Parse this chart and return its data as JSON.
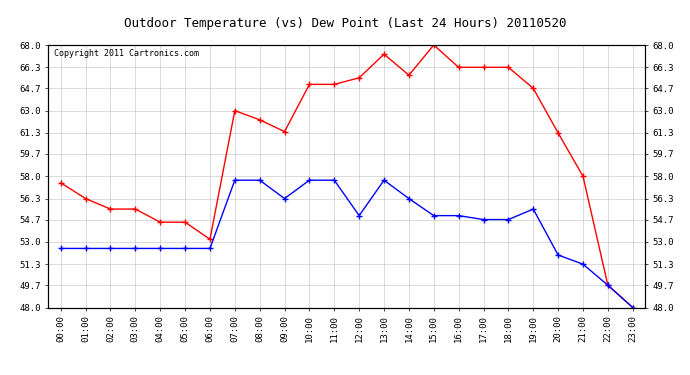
{
  "title": "Outdoor Temperature (vs) Dew Point (Last 24 Hours) 20110520",
  "copyright": "Copyright 2011 Cartronics.com",
  "x_labels": [
    "00:00",
    "01:00",
    "02:00",
    "03:00",
    "04:00",
    "05:00",
    "06:00",
    "07:00",
    "08:00",
    "09:00",
    "10:00",
    "11:00",
    "12:00",
    "13:00",
    "14:00",
    "15:00",
    "16:00",
    "17:00",
    "18:00",
    "19:00",
    "20:00",
    "21:00",
    "22:00",
    "23:00"
  ],
  "temp_red": [
    57.5,
    56.3,
    55.5,
    55.5,
    54.5,
    54.5,
    53.2,
    63.0,
    62.3,
    61.4,
    65.0,
    65.0,
    65.5,
    67.3,
    65.7,
    68.0,
    66.3,
    66.3,
    66.3,
    64.7,
    61.3,
    58.0,
    49.7,
    48.0
  ],
  "dew_blue": [
    52.5,
    52.5,
    52.5,
    52.5,
    52.5,
    52.5,
    52.5,
    57.7,
    57.7,
    56.3,
    57.7,
    57.7,
    55.0,
    57.7,
    56.3,
    55.0,
    55.0,
    54.7,
    54.7,
    55.5,
    52.0,
    51.3,
    49.7,
    48.0
  ],
  "ylim": [
    48.0,
    68.0
  ],
  "yticks": [
    48.0,
    49.7,
    51.3,
    53.0,
    54.7,
    56.3,
    58.0,
    59.7,
    61.3,
    63.0,
    64.7,
    66.3,
    68.0
  ],
  "bg_color": "#ffffff",
  "grid_color": "#cccccc",
  "red_color": "#ff0000",
  "blue_color": "#0000ff",
  "title_fontsize": 9,
  "copyright_fontsize": 6,
  "tick_fontsize": 6.5
}
